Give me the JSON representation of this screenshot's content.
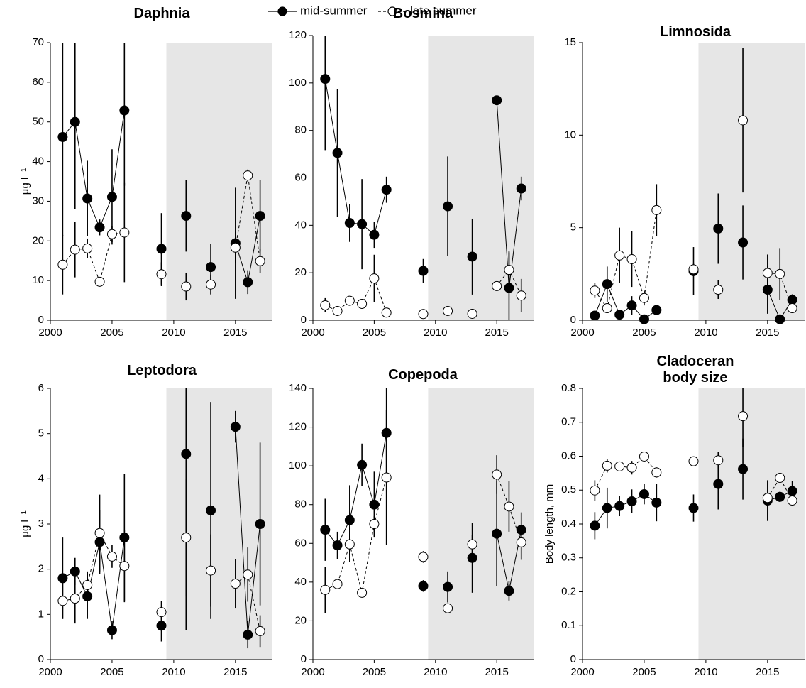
{
  "chart_data": [
    {
      "type": "line",
      "title": "Daphnia",
      "y_label": "µg l⁻¹",
      "x": [
        2001,
        2002,
        2003,
        2004,
        2005,
        2006,
        2007,
        2008,
        2009,
        2010,
        2011,
        2012,
        2013,
        2014,
        2015,
        2016,
        2017
      ],
      "xlim": [
        2000,
        2018
      ],
      "xticks": [
        2000,
        2005,
        2010,
        2015
      ],
      "ylim": [
        0,
        70
      ],
      "yticks": [
        0,
        10,
        20,
        30,
        40,
        50,
        60,
        70
      ],
      "shade": [
        2009.4,
        2018
      ],
      "series": [
        {
          "name": "mid-summer",
          "color": "#000000",
          "fill": "#000000",
          "dash": "none",
          "values": [
            46.2,
            50,
            30.7,
            23.4,
            31.1,
            52.9,
            null,
            null,
            18,
            null,
            26.3,
            null,
            13.4,
            null,
            19.4,
            9.6,
            26.3
          ],
          "errors": [
            25,
            22,
            9.5,
            2,
            12,
            19,
            null,
            null,
            9,
            null,
            9,
            null,
            5.8,
            null,
            14,
            3,
            9
          ]
        },
        {
          "name": "late summer",
          "color": "#000000",
          "fill": "#ffffff",
          "dash": "4,3",
          "values": [
            14,
            17.8,
            18.1,
            9.7,
            21.7,
            22.1,
            null,
            null,
            11.6,
            null,
            8.5,
            null,
            9,
            null,
            18.3,
            36.5,
            14.9
          ],
          "errors": [
            7.5,
            7,
            2.5,
            1,
            2,
            12.5,
            null,
            null,
            3,
            null,
            3.5,
            null,
            2.5,
            null,
            4,
            1.5,
            3
          ]
        }
      ]
    },
    {
      "type": "line",
      "title": "Bosmina",
      "x": [
        2001,
        2002,
        2003,
        2004,
        2005,
        2006,
        2007,
        2008,
        2009,
        2010,
        2011,
        2012,
        2013,
        2014,
        2015,
        2016,
        2017
      ],
      "xlim": [
        2000,
        2018
      ],
      "xticks": [
        2000,
        2005,
        2010,
        2015
      ],
      "ylim": [
        0,
        120
      ],
      "yticks": [
        0,
        20,
        40,
        60,
        80,
        100,
        120
      ],
      "shade": [
        2009.4,
        2018
      ],
      "series": [
        {
          "color": "#000000",
          "fill": "#000000",
          "dash": "none",
          "values": [
            101.7,
            70.5,
            41,
            40.5,
            36,
            55,
            null,
            null,
            20.8,
            null,
            48,
            null,
            26.8,
            null,
            92.7,
            13.6,
            55.5
          ],
          "errors": [
            30,
            27,
            8,
            19,
            5.5,
            5.5,
            null,
            null,
            5,
            null,
            21,
            null,
            16,
            null,
            1,
            15,
            5
          ]
        },
        {
          "color": "#000000",
          "fill": "#ffffff",
          "dash": "4,3",
          "values": [
            6.3,
            3.9,
            8.2,
            6.9,
            17.6,
            3.2,
            null,
            null,
            2.6,
            null,
            3.9,
            null,
            2.7,
            null,
            14.4,
            21.2,
            10.4
          ],
          "errors": [
            3,
            2,
            1,
            2,
            10,
            1,
            null,
            null,
            0.5,
            null,
            0.5,
            null,
            0.5,
            null,
            0.5,
            8,
            7
          ]
        }
      ]
    },
    {
      "type": "line",
      "title": "Limnosida",
      "x": [
        2001,
        2002,
        2003,
        2004,
        2005,
        2006,
        2007,
        2008,
        2009,
        2010,
        2011,
        2012,
        2013,
        2014,
        2015,
        2016,
        2017
      ],
      "xlim": [
        2000,
        2018
      ],
      "xticks": [
        2000,
        2005,
        2010,
        2015
      ],
      "ylim": [
        0,
        15
      ],
      "yticks": [
        0,
        5,
        10,
        15
      ],
      "shade": [
        2009.4,
        2018
      ],
      "series": [
        {
          "color": "#000000",
          "fill": "#000000",
          "dash": "none",
          "values": [
            0.25,
            1.95,
            0.3,
            0.8,
            0.05,
            0.55,
            null,
            null,
            2.65,
            null,
            4.95,
            null,
            4.2,
            null,
            1.65,
            0.05,
            1.1
          ],
          "errors": [
            0.1,
            0.95,
            0.1,
            0.5,
            0.05,
            0.1,
            null,
            null,
            1.3,
            null,
            1.9,
            null,
            2,
            null,
            1.3,
            0.05,
            0.3
          ]
        },
        {
          "color": "#000000",
          "fill": "#ffffff",
          "dash": "4,3",
          "values": [
            1.6,
            0.65,
            3.5,
            3.3,
            1.2,
            5.95,
            null,
            null,
            2.75,
            null,
            1.65,
            null,
            10.8,
            null,
            2.55,
            2.5,
            0.65
          ],
          "errors": [
            0.4,
            0.2,
            1.5,
            1.5,
            0.4,
            1.4,
            null,
            null,
            0.3,
            null,
            0.5,
            null,
            3.9,
            null,
            1,
            1.4,
            0.2
          ]
        }
      ]
    },
    {
      "type": "line",
      "title": "Leptodora",
      "y_label": "µg l⁻¹",
      "x": [
        2001,
        2002,
        2003,
        2004,
        2005,
        2006,
        2007,
        2008,
        2009,
        2010,
        2011,
        2012,
        2013,
        2014,
        2015,
        2016,
        2017
      ],
      "xlim": [
        2000,
        2018
      ],
      "xticks": [
        2000,
        2005,
        2010,
        2015
      ],
      "ylim": [
        0,
        6
      ],
      "yticks": [
        0,
        1,
        2,
        3,
        4,
        5,
        6
      ],
      "shade": [
        2009.4,
        2018
      ],
      "series": [
        {
          "color": "#000000",
          "fill": "#000000",
          "dash": "none",
          "values": [
            1.8,
            1.95,
            1.4,
            2.6,
            0.65,
            2.7,
            null,
            null,
            0.75,
            null,
            4.55,
            null,
            3.3,
            null,
            5.15,
            0.55,
            3
          ],
          "errors": [
            0.9,
            0.3,
            0.5,
            0.7,
            0.2,
            1.4,
            null,
            null,
            0.35,
            null,
            3.9,
            null,
            2.4,
            null,
            0.35,
            0.3,
            1.8
          ]
        },
        {
          "color": "#000000",
          "fill": "#ffffff",
          "dash": "4,3",
          "values": [
            1.3,
            1.35,
            1.65,
            2.8,
            2.28,
            2.07,
            null,
            null,
            1.05,
            null,
            2.7,
            null,
            1.97,
            null,
            1.68,
            1.88,
            0.63
          ],
          "errors": [
            0.4,
            0.55,
            0.3,
            0.85,
            0.25,
            0.8,
            null,
            null,
            0.25,
            null,
            1.3,
            null,
            0.8,
            null,
            0.55,
            0.6,
            0.35
          ]
        }
      ]
    },
    {
      "type": "line",
      "title": "Copepoda",
      "x": [
        2001,
        2002,
        2003,
        2004,
        2005,
        2006,
        2007,
        2008,
        2009,
        2010,
        2011,
        2012,
        2013,
        2014,
        2015,
        2016,
        2017
      ],
      "xlim": [
        2000,
        2018
      ],
      "xticks": [
        2000,
        2005,
        2010,
        2015
      ],
      "ylim": [
        0,
        140
      ],
      "yticks": [
        0,
        20,
        40,
        60,
        80,
        100,
        120,
        140
      ],
      "shade": [
        2009.4,
        2018
      ],
      "series": [
        {
          "color": "#000000",
          "fill": "#000000",
          "dash": "none",
          "values": [
            67,
            59,
            72,
            100.5,
            80,
            117,
            null,
            null,
            38,
            null,
            37.5,
            null,
            52.5,
            null,
            65,
            35.5,
            67
          ],
          "errors": [
            16,
            7,
            18,
            11,
            17,
            23,
            null,
            null,
            3,
            null,
            8,
            null,
            18,
            null,
            27,
            5,
            9
          ]
        },
        {
          "color": "#000000",
          "fill": "#ffffff",
          "dash": "4,3",
          "values": [
            36,
            39,
            59.5,
            34.5,
            70,
            94,
            null,
            null,
            53,
            null,
            26.5,
            null,
            59.5,
            null,
            95.5,
            79,
            60.5
          ],
          "errors": [
            12,
            2,
            9,
            2,
            4,
            35,
            null,
            null,
            3,
            null,
            2,
            null,
            5,
            null,
            10,
            13,
            9
          ]
        }
      ]
    },
    {
      "type": "line",
      "title": "Cladoceran body size",
      "y_label": "Body length, mm",
      "x": [
        2001,
        2002,
        2003,
        2004,
        2005,
        2006,
        2007,
        2008,
        2009,
        2010,
        2011,
        2012,
        2013,
        2014,
        2015,
        2016,
        2017
      ],
      "xlim": [
        2000,
        2018
      ],
      "xticks": [
        2000,
        2005,
        2010,
        2015
      ],
      "ylim": [
        0,
        0.8
      ],
      "yticks": [
        0,
        0.1,
        0.2,
        0.3,
        0.4,
        0.5,
        0.6,
        0.7,
        0.8
      ],
      "shade": [
        2009.4,
        2018
      ],
      "series": [
        {
          "color": "#000000",
          "fill": "#000000",
          "dash": "none",
          "values": [
            0.395,
            0.447,
            0.453,
            0.467,
            0.488,
            0.463,
            null,
            null,
            0.447,
            null,
            0.518,
            null,
            0.562,
            null,
            0.469,
            0.48,
            0.497
          ],
          "errors": [
            0.04,
            0.06,
            0.03,
            0.035,
            0.03,
            0.055,
            null,
            null,
            0.04,
            null,
            0.075,
            null,
            0.09,
            null,
            0.06,
            0.015,
            0.03
          ]
        },
        {
          "color": "#000000",
          "fill": "#ffffff",
          "dash": "4,3",
          "values": [
            0.499,
            0.572,
            0.57,
            0.566,
            0.599,
            0.552,
            null,
            null,
            0.585,
            null,
            0.588,
            null,
            0.718,
            null,
            0.477,
            0.536,
            0.469
          ],
          "errors": [
            0.03,
            0.02,
            0.01,
            0.02,
            0.01,
            0.015,
            null,
            null,
            0.01,
            null,
            0.025,
            null,
            0.09,
            null,
            0.01,
            0.01,
            0.01
          ]
        }
      ]
    }
  ]
}
